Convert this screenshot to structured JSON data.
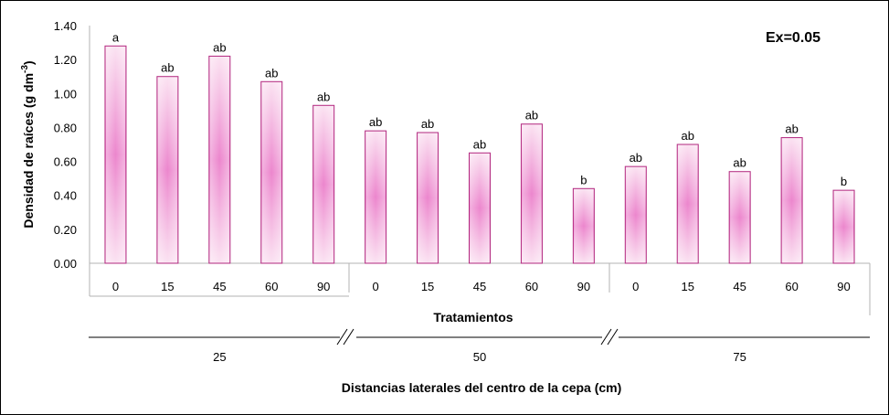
{
  "chart_data": {
    "type": "bar",
    "title": "",
    "annotation": "Ex=0.05",
    "ylabel_main": "Densidad de raíces (g dm",
    "ylabel_sup": "-3",
    "ylabel_close": ")",
    "xlabel": "Tratamientos",
    "group_axis_label": "Distancias laterales del centro de la cepa (cm)",
    "ylim": [
      0,
      1.4
    ],
    "yticks": [
      "0.00",
      "0.20",
      "0.40",
      "0.60",
      "0.80",
      "1.00",
      "1.20",
      "1.40"
    ],
    "categories": [
      "0",
      "15",
      "45",
      "60",
      "90",
      "0",
      "15",
      "45",
      "60",
      "90",
      "0",
      "15",
      "45",
      "60",
      "90"
    ],
    "groups": [
      "25",
      "50",
      "75"
    ],
    "values": [
      1.28,
      1.1,
      1.22,
      1.07,
      0.93,
      0.78,
      0.77,
      0.65,
      0.82,
      0.44,
      0.57,
      0.7,
      0.54,
      0.74,
      0.43
    ],
    "labels": [
      "a",
      "ab",
      "ab",
      "ab",
      "ab",
      "ab",
      "ab",
      "ab",
      "ab",
      "b",
      "ab",
      "ab",
      "ab",
      "ab",
      "b"
    ],
    "grid": false,
    "bar_color": "#e879c9",
    "bar_edge_color": "#b2287f"
  }
}
